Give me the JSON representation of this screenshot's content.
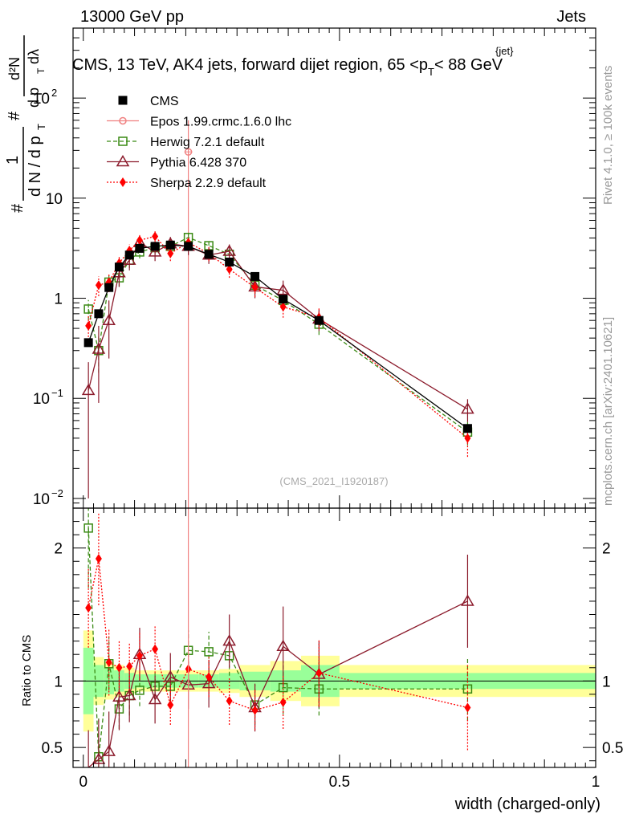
{
  "header": {
    "left": "13000 GeV pp",
    "right": "Jets"
  },
  "side": {
    "rivet": "Rivet 4.1.0, ≥ 100k events",
    "mcplots": "mcplots.cern.ch [arXiv:2401.10621]"
  },
  "watermark": "(CMS_2021_I1920187)",
  "colors": {
    "cms": "#000000",
    "epos": "#f08080",
    "herwig": "#3a8a14",
    "pythia": "#8b1a2b",
    "sherpa": "#ff0000",
    "band_inner": "#99ff99",
    "band_outer": "#ffff99"
  },
  "chart_data": [
    {
      "type": "scatter",
      "panel": "main",
      "title": "CMS, 13 TeV, AK4 jets, forward dijet region, 65 <p_T^{jet}< 88 GeV",
      "title_parts": {
        "main": "CMS, 13 TeV, AK4 jets, forward dijet region, 65 <p",
        "sup": "{jet}",
        "sub": "T",
        "tail": "< 88 GeV"
      },
      "ylabel_parts": {
        "one": "1",
        "pre": "#",
        "denom": "d N / d p",
        "denom_sub": "T",
        "hash2": "#",
        "num": "d²N",
        "den2": "d p",
        "den2_sub": "T",
        "den2_tail": "dλ"
      },
      "xlabel": "",
      "yscale": "log",
      "ylim": [
        0.008,
        500
      ],
      "xlim": [
        -0.02,
        1.0
      ],
      "y_ticks": [
        {
          "value": 0.01,
          "label": "10",
          "exp": "−2"
        },
        {
          "value": 0.1,
          "label": "10",
          "exp": "−1"
        },
        {
          "value": 1,
          "label": "1",
          "exp": ""
        },
        {
          "value": 10,
          "label": "10",
          "exp": ""
        },
        {
          "value": 100,
          "label": "10",
          "exp": "2"
        }
      ],
      "legend": [
        {
          "key": "cms",
          "label": "CMS"
        },
        {
          "key": "epos",
          "label": "Epos 1.99.crmc.1.6.0 lhc"
        },
        {
          "key": "herwig",
          "label": "Herwig 7.2.1 default"
        },
        {
          "key": "pythia",
          "label": "Pythia 6.428 370"
        },
        {
          "key": "sherpa",
          "label": "Sherpa 2.2.9 default"
        }
      ],
      "series": [
        {
          "name": "CMS",
          "key": "cms",
          "x": [
            0.01,
            0.03,
            0.05,
            0.07,
            0.09,
            0.11,
            0.14,
            0.17,
            0.205,
            0.245,
            0.285,
            0.335,
            0.39,
            0.46,
            0.75
          ],
          "y": [
            0.36,
            0.7,
            1.28,
            2.05,
            2.7,
            3.15,
            3.3,
            3.4,
            3.3,
            2.75,
            2.3,
            1.65,
            0.98,
            0.6,
            0.05
          ]
        },
        {
          "name": "Epos 1.99.crmc.1.6.0 lhc",
          "key": "epos",
          "x": [
            0.205
          ],
          "y": [
            29
          ],
          "err_lo": [
            0.005
          ],
          "err_hi": [
            60
          ]
        },
        {
          "name": "Herwig 7.2.1 default",
          "key": "herwig",
          "x": [
            0.01,
            0.03,
            0.05,
            0.07,
            0.09,
            0.11,
            0.14,
            0.17,
            0.205,
            0.245,
            0.285,
            0.335,
            0.39,
            0.46,
            0.75
          ],
          "y": [
            0.78,
            0.3,
            1.45,
            1.6,
            2.4,
            2.9,
            3.2,
            3.3,
            4.05,
            3.35,
            2.75,
            1.35,
            0.95,
            0.55,
            0.046
          ],
          "err": [
            0.18,
            0.12,
            0.25,
            0.3,
            0.4,
            0.4,
            0.45,
            0.45,
            0.5,
            0.45,
            0.4,
            0.25,
            0.2,
            0.12,
            0.012
          ]
        },
        {
          "name": "Pythia 6.428 370",
          "key": "pythia",
          "x": [
            0.01,
            0.03,
            0.05,
            0.07,
            0.09,
            0.11,
            0.14,
            0.17,
            0.205,
            0.245,
            0.285,
            0.335,
            0.39,
            0.46,
            0.75
          ],
          "y": [
            0.12,
            0.31,
            0.6,
            1.8,
            2.4,
            3.6,
            2.9,
            3.5,
            3.3,
            2.7,
            2.95,
            1.3,
            1.2,
            0.62,
            0.078
          ],
          "err": [
            0.11,
            0.22,
            0.35,
            0.5,
            0.5,
            0.6,
            0.55,
            0.6,
            0.6,
            0.5,
            0.5,
            0.3,
            0.3,
            0.15,
            0.02
          ]
        },
        {
          "name": "Sherpa 2.2.9 default",
          "key": "sherpa",
          "x": [
            0.01,
            0.03,
            0.05,
            0.07,
            0.09,
            0.11,
            0.14,
            0.17,
            0.205,
            0.245,
            0.285,
            0.335,
            0.39,
            0.46,
            0.75
          ],
          "y": [
            0.53,
            1.35,
            1.45,
            2.25,
            3.0,
            3.8,
            4.15,
            2.8,
            3.6,
            2.8,
            1.95,
            1.28,
            0.82,
            0.64,
            0.04
          ],
          "err": [
            0.15,
            0.3,
            0.3,
            0.4,
            0.45,
            0.5,
            0.55,
            0.45,
            0.5,
            0.45,
            0.35,
            0.25,
            0.18,
            0.15,
            0.014
          ]
        }
      ]
    },
    {
      "type": "scatter",
      "panel": "ratio",
      "title": "",
      "xlabel": "width (charged-only)",
      "ylabel": "Ratio to CMS",
      "ylim": [
        0.35,
        2.3
      ],
      "xlim": [
        -0.02,
        1.0
      ],
      "x_ticks": [
        {
          "value": 0,
          "label": "0"
        },
        {
          "value": 0.5,
          "label": "0.5"
        },
        {
          "value": 1,
          "label": "1"
        }
      ],
      "y_ticks": [
        {
          "value": 0.5,
          "label": "0.5"
        },
        {
          "value": 1,
          "label": "1"
        },
        {
          "value": 2,
          "label": "2"
        }
      ],
      "bands": {
        "bins": [
          [
            0.0,
            0.02
          ],
          [
            0.02,
            0.04
          ],
          [
            0.04,
            0.06
          ],
          [
            0.06,
            0.08
          ],
          [
            0.08,
            0.1
          ],
          [
            0.1,
            0.12
          ],
          [
            0.12,
            0.155
          ],
          [
            0.155,
            0.185
          ],
          [
            0.185,
            0.225
          ],
          [
            0.225,
            0.265
          ],
          [
            0.265,
            0.305
          ],
          [
            0.305,
            0.365
          ],
          [
            0.365,
            0.425
          ],
          [
            0.425,
            0.5
          ],
          [
            0.5,
            1.0
          ]
        ],
        "inner": [
          0.25,
          0.12,
          0.1,
          0.08,
          0.06,
          0.05,
          0.05,
          0.05,
          0.05,
          0.05,
          0.06,
          0.07,
          0.08,
          0.12,
          0.06
        ],
        "outer": [
          0.38,
          0.18,
          0.14,
          0.12,
          0.1,
          0.08,
          0.08,
          0.08,
          0.08,
          0.08,
          0.09,
          0.12,
          0.15,
          0.19,
          0.12
        ]
      },
      "series": [
        {
          "name": "Herwig 7.2.1 default",
          "key": "herwig",
          "x": [
            0.01,
            0.03,
            0.05,
            0.07,
            0.09,
            0.11,
            0.14,
            0.17,
            0.205,
            0.245,
            0.285,
            0.335,
            0.39,
            0.46,
            0.75
          ],
          "y": [
            2.15,
            0.43,
            1.13,
            0.79,
            0.89,
            0.93,
            0.96,
            0.96,
            1.23,
            1.22,
            1.19,
            0.82,
            0.95,
            0.94,
            0.94
          ],
          "err": [
            0.45,
            0.3,
            0.2,
            0.15,
            0.15,
            0.12,
            0.12,
            0.12,
            0.15,
            0.15,
            0.15,
            0.15,
            0.2,
            0.2,
            0.24
          ]
        },
        {
          "name": "Pythia 6.428 370",
          "key": "pythia",
          "x": [
            0.01,
            0.03,
            0.05,
            0.07,
            0.09,
            0.11,
            0.14,
            0.17,
            0.205,
            0.245,
            0.285,
            0.335,
            0.39,
            0.46,
            0.75
          ],
          "y": [
            0.33,
            0.41,
            0.47,
            0.88,
            0.89,
            1.2,
            0.86,
            1.03,
            0.97,
            0.98,
            1.3,
            0.8,
            1.26,
            1.05,
            1.6
          ],
          "err": [
            0.3,
            0.3,
            0.3,
            0.25,
            0.2,
            0.2,
            0.18,
            0.18,
            0.18,
            0.18,
            0.2,
            0.18,
            0.3,
            0.25,
            0.35
          ]
        },
        {
          "name": "Sherpa 2.2.9 default",
          "key": "sherpa",
          "x": [
            0.01,
            0.03,
            0.05,
            0.07,
            0.09,
            0.11,
            0.14,
            0.17,
            0.205,
            0.245,
            0.285,
            0.335,
            0.39,
            0.46,
            0.75
          ],
          "y": [
            1.55,
            1.92,
            1.14,
            1.1,
            1.11,
            1.19,
            1.24,
            0.82,
            1.09,
            1.03,
            0.85,
            0.78,
            0.84,
            1.06,
            0.8
          ],
          "err": [
            0.3,
            0.35,
            0.25,
            0.2,
            0.18,
            0.18,
            0.18,
            0.15,
            0.15,
            0.15,
            0.18,
            0.15,
            0.2,
            0.25,
            0.32
          ]
        }
      ]
    }
  ]
}
